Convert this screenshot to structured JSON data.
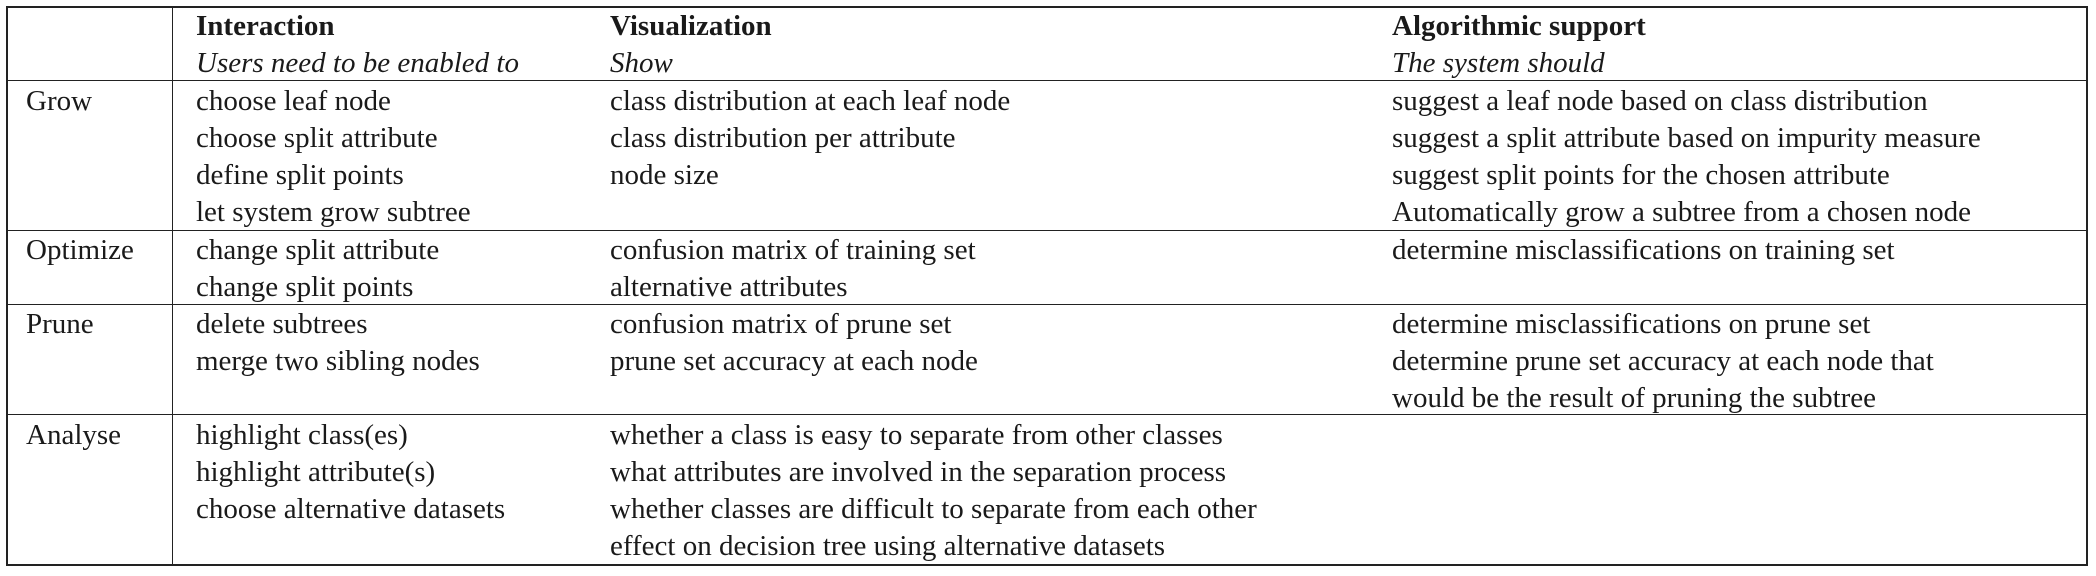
{
  "table": {
    "columns": [
      {
        "title": "Interaction",
        "subtitle": "Users need to be enabled to"
      },
      {
        "title": "Visualization",
        "subtitle": "Show"
      },
      {
        "title": "Algorithmic support",
        "subtitle": "The system should"
      }
    ],
    "rows": [
      {
        "phase": "Grow",
        "interaction": [
          "choose leaf node",
          "choose split attribute",
          "define split points",
          "let system grow subtree"
        ],
        "visualization": [
          "class distribution at each leaf node",
          "class distribution per attribute",
          "node size"
        ],
        "algorithmic": [
          "suggest a leaf node based on class distribution",
          "suggest a split attribute based on impurity measure",
          "suggest split points for the chosen attribute",
          "Automatically grow a subtree from a chosen node"
        ]
      },
      {
        "phase": "Optimize",
        "interaction": [
          "change split attribute",
          "change split points"
        ],
        "visualization": [
          "confusion matrix of training set",
          "alternative attributes"
        ],
        "algorithmic": [
          "determine misclassifications on training set"
        ]
      },
      {
        "phase": "Prune",
        "interaction": [
          "delete subtrees",
          "merge two sibling nodes"
        ],
        "visualization": [
          "confusion matrix of prune set",
          "prune set accuracy at each node"
        ],
        "algorithmic": [
          "determine misclassifications on prune set",
          "determine prune set accuracy at each node that",
          "would be the result of pruning the subtree"
        ]
      },
      {
        "phase": "Analyse",
        "interaction": [
          "highlight class(es)",
          "highlight attribute(s)",
          "choose alternative datasets"
        ],
        "visualization": [
          "whether a class is easy to separate from other classes",
          "what attributes are involved in the separation process",
          "whether classes are difficult to separate from each other",
          "effect on decision tree using alternative datasets"
        ],
        "algorithmic": []
      }
    ]
  }
}
